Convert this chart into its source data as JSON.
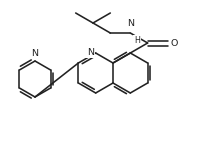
{
  "bg": "#ffffff",
  "lc": "#222222",
  "lw": 1.15,
  "fs": 6.8,
  "figsize": [
    2.05,
    1.61
  ],
  "dpi": 100,
  "xlim": [
    0,
    205
  ],
  "ylim": [
    0,
    161
  ]
}
